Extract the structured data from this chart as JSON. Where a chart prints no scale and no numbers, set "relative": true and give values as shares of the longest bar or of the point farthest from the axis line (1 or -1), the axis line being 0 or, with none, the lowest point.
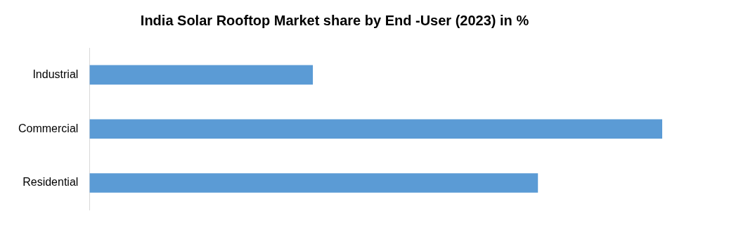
{
  "chart_data": {
    "type": "bar",
    "orientation": "horizontal",
    "relative": true,
    "title": "India Solar Rooftop Market share by End -User (2023) in %",
    "categories": [
      "Industrial",
      "Commercial",
      "Residential"
    ],
    "values": [
      0.39,
      1,
      0.783
    ],
    "color": "#5b9bd5"
  }
}
